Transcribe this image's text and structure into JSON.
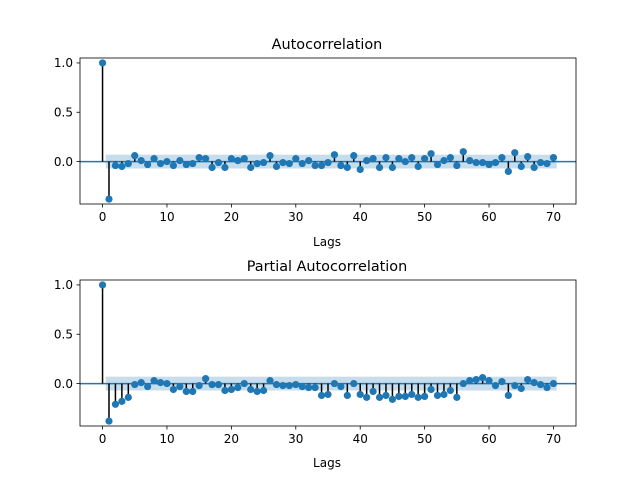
{
  "chart_data": [
    {
      "type": "stem",
      "title": "Autocorrelation",
      "xlabel": "Lags",
      "ylabel": "",
      "xlim": [
        -3.5,
        73.5
      ],
      "ylim": [
        -0.43,
        1.05
      ],
      "xticks": [
        0,
        10,
        20,
        30,
        40,
        50,
        60,
        70
      ],
      "yticks": [
        0.0,
        0.5,
        1.0
      ],
      "ytick_labels": [
        "0.0",
        "0.5",
        "1.0"
      ],
      "confidence_band_halfwidth": 0.07,
      "grid": false,
      "colors": {
        "marker": "#1f77b4",
        "stem": "#000000",
        "baseline": "#1f77b4",
        "band": "#1f77b4"
      },
      "x": [
        0,
        1,
        2,
        3,
        4,
        5,
        6,
        7,
        8,
        9,
        10,
        11,
        12,
        13,
        14,
        15,
        16,
        17,
        18,
        19,
        20,
        21,
        22,
        23,
        24,
        25,
        26,
        27,
        28,
        29,
        30,
        31,
        32,
        33,
        34,
        35,
        36,
        37,
        38,
        39,
        40,
        41,
        42,
        43,
        44,
        45,
        46,
        47,
        48,
        49,
        50,
        51,
        52,
        53,
        54,
        55,
        56,
        57,
        58,
        59,
        60,
        61,
        62,
        63,
        64,
        65,
        66,
        67,
        68,
        69,
        70
      ],
      "values": [
        1.0,
        -0.38,
        -0.04,
        -0.05,
        -0.02,
        0.06,
        0.01,
        -0.03,
        0.03,
        -0.02,
        0.0,
        -0.04,
        0.01,
        -0.03,
        -0.02,
        0.04,
        0.03,
        -0.06,
        -0.01,
        -0.06,
        0.03,
        0.01,
        0.03,
        -0.06,
        -0.02,
        -0.01,
        0.06,
        -0.05,
        -0.01,
        -0.02,
        0.03,
        -0.02,
        0.01,
        -0.04,
        -0.04,
        -0.01,
        0.07,
        -0.04,
        -0.06,
        0.06,
        -0.08,
        0.01,
        0.03,
        -0.06,
        0.04,
        -0.06,
        0.03,
        0.0,
        0.04,
        -0.05,
        0.03,
        0.08,
        -0.03,
        0.01,
        0.04,
        -0.04,
        0.1,
        0.01,
        -0.01,
        -0.01,
        -0.03,
        -0.01,
        0.04,
        -0.1,
        0.09,
        -0.05,
        0.05,
        -0.06,
        -0.01,
        -0.02,
        0.04
      ]
    },
    {
      "type": "stem",
      "title": "Partial Autocorrelation",
      "xlabel": "Lags",
      "ylabel": "",
      "xlim": [
        -3.5,
        73.5
      ],
      "ylim": [
        -0.43,
        1.05
      ],
      "xticks": [
        0,
        10,
        20,
        30,
        40,
        50,
        60,
        70
      ],
      "yticks": [
        0.0,
        0.5,
        1.0
      ],
      "ytick_labels": [
        "0.0",
        "0.5",
        "1.0"
      ],
      "confidence_band_halfwidth": 0.07,
      "grid": false,
      "colors": {
        "marker": "#1f77b4",
        "stem": "#000000",
        "baseline": "#1f77b4",
        "band": "#1f77b4"
      },
      "x": [
        0,
        1,
        2,
        3,
        4,
        5,
        6,
        7,
        8,
        9,
        10,
        11,
        12,
        13,
        14,
        15,
        16,
        17,
        18,
        19,
        20,
        21,
        22,
        23,
        24,
        25,
        26,
        27,
        28,
        29,
        30,
        31,
        32,
        33,
        34,
        35,
        36,
        37,
        38,
        39,
        40,
        41,
        42,
        43,
        44,
        45,
        46,
        47,
        48,
        49,
        50,
        51,
        52,
        53,
        54,
        55,
        56,
        57,
        58,
        59,
        60,
        61,
        62,
        63,
        64,
        65,
        66,
        67,
        68,
        69,
        70
      ],
      "values": [
        1.0,
        -0.38,
        -0.21,
        -0.18,
        -0.14,
        -0.01,
        0.01,
        -0.03,
        0.03,
        0.01,
        0.0,
        -0.06,
        -0.03,
        -0.08,
        -0.08,
        -0.02,
        0.05,
        -0.01,
        -0.01,
        -0.07,
        -0.06,
        -0.04,
        0.0,
        -0.06,
        -0.08,
        -0.07,
        0.03,
        -0.01,
        -0.02,
        -0.02,
        -0.01,
        -0.03,
        -0.04,
        -0.04,
        -0.12,
        -0.11,
        0.0,
        -0.03,
        -0.12,
        0.0,
        -0.11,
        -0.14,
        -0.08,
        -0.14,
        -0.12,
        -0.16,
        -0.13,
        -0.13,
        -0.11,
        -0.14,
        -0.13,
        -0.06,
        -0.12,
        -0.11,
        -0.07,
        -0.14,
        0.0,
        0.03,
        0.04,
        0.06,
        0.03,
        -0.02,
        0.02,
        -0.12,
        -0.02,
        -0.05,
        0.04,
        0.01,
        -0.01,
        -0.04,
        0.0
      ]
    }
  ]
}
